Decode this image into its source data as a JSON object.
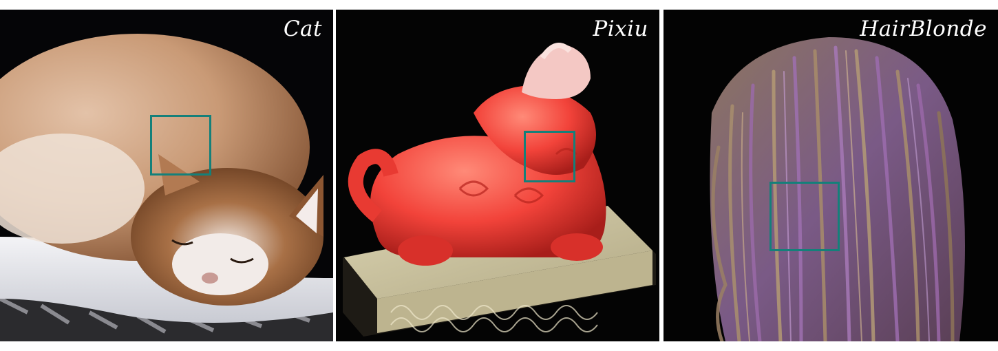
{
  "panels": [
    {
      "label": "Cat",
      "subject": "cat",
      "roi_color": "#14807a"
    },
    {
      "label": "Pixiu",
      "subject": "pixiu",
      "roi_color": "#14807a"
    },
    {
      "label": "HairBlonde",
      "subject": "hair",
      "roi_color": "#14807a"
    }
  ]
}
